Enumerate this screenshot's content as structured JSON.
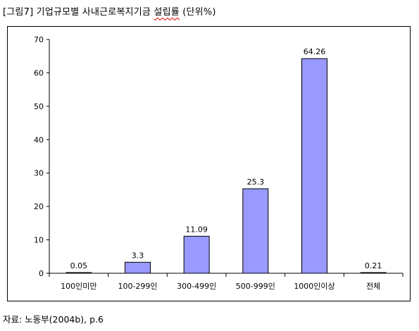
{
  "title": {
    "prefix": "[그림7] 기업규모별 사내근로복지기금 ",
    "highlight": "설립률",
    "suffix": " (단위%)"
  },
  "source": "자료: 노동부(2004b), p.6",
  "colors": {
    "bar_fill": "#9999ff",
    "bar_stroke": "#000000",
    "axis": "#000000"
  },
  "chart_data": {
    "type": "bar",
    "categories": [
      "100인미만",
      "100-299인",
      "300-499인",
      "500-999인",
      "1000인이상",
      "전체"
    ],
    "values": [
      0.05,
      3.3,
      11.09,
      25.3,
      64.26,
      0.21
    ],
    "value_labels": [
      "0.05",
      "3.3",
      "11.09",
      "25.3",
      "64.26",
      "0.21"
    ],
    "ylim": [
      0,
      70
    ],
    "yticks": [
      0,
      10,
      20,
      30,
      40,
      50,
      60,
      70
    ],
    "xlabel": "",
    "ylabel": "",
    "grid": false,
    "legend": "none"
  }
}
